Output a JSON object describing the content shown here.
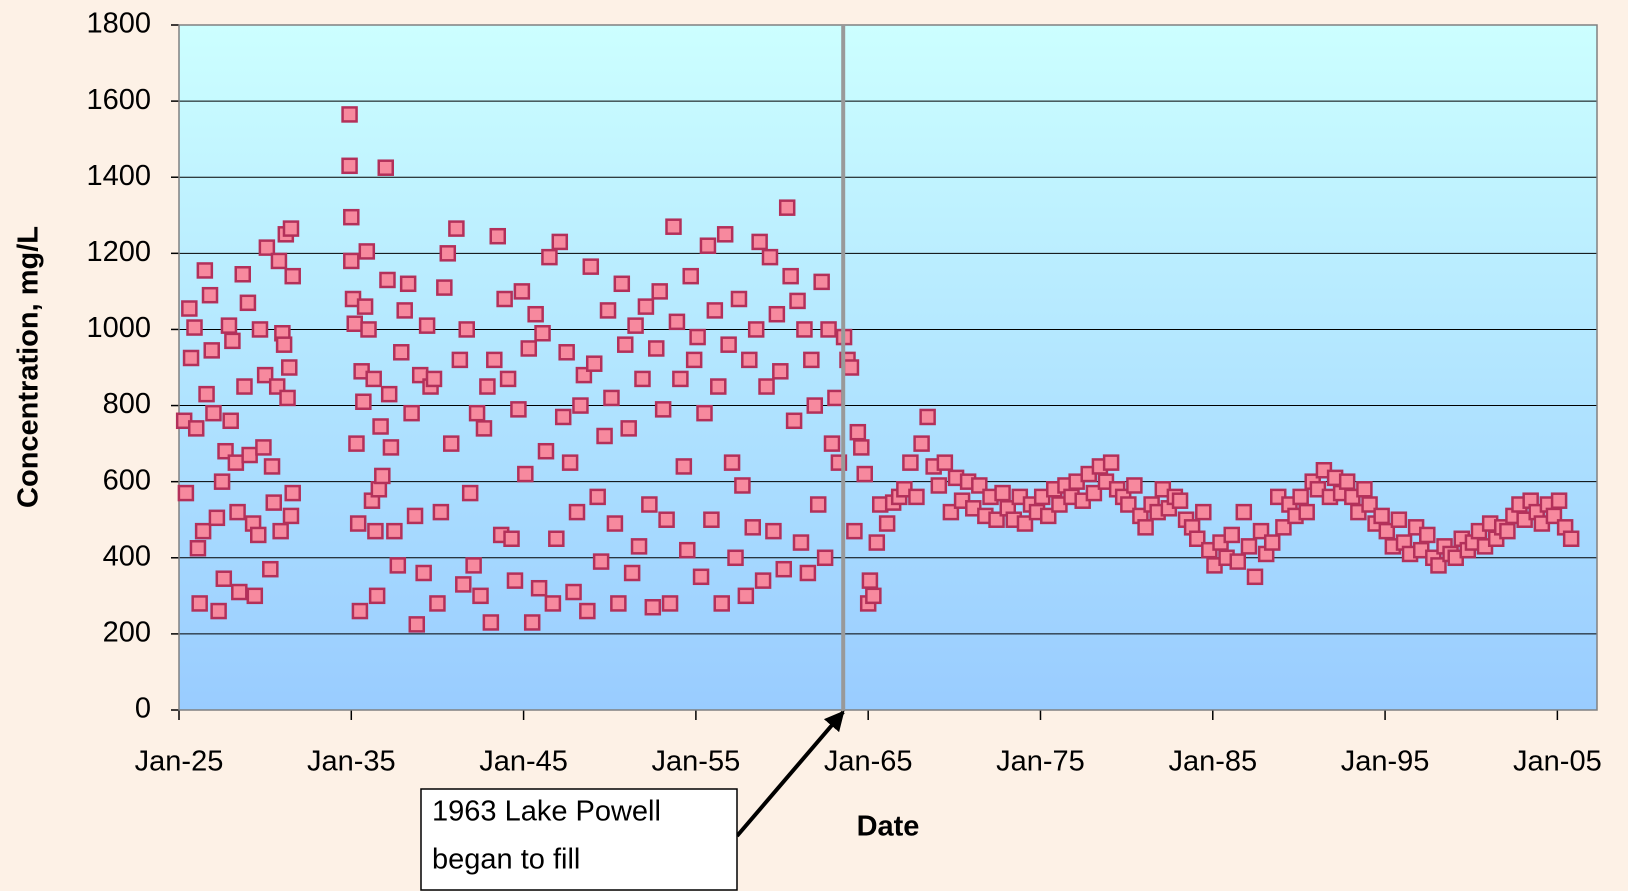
{
  "chart_data": {
    "type": "scatter",
    "xlabel": "Date",
    "ylabel": "Concentration, mg/L",
    "color": "#f7899e",
    "edgecolor": "#b3305a",
    "xlim": [
      1925,
      2007.3
    ],
    "ylim": [
      0,
      1800
    ],
    "xticks": [
      {
        "value": 1925,
        "label": "Jan-25"
      },
      {
        "value": 1935,
        "label": "Jan-35"
      },
      {
        "value": 1945,
        "label": "Jan-45"
      },
      {
        "value": 1955,
        "label": "Jan-55"
      },
      {
        "value": 1965,
        "label": "Jan-65"
      },
      {
        "value": 1975,
        "label": "Jan-75"
      },
      {
        "value": 1985,
        "label": "Jan-85"
      },
      {
        "value": 1995,
        "label": "Jan-95"
      },
      {
        "value": 2005,
        "label": "Jan-05"
      }
    ],
    "yticks": [
      0,
      200,
      400,
      600,
      800,
      1000,
      1200,
      1400,
      1600,
      1800
    ],
    "grid": true,
    "vline": 1963.55,
    "annotation": [
      "1963 Lake Powell",
      "began to fill"
    ],
    "x": [
      1925.3,
      1925.4,
      1925.6,
      1925.7,
      1925.9,
      1926.0,
      1926.1,
      1926.2,
      1926.4,
      1926.5,
      1926.6,
      1926.8,
      1926.9,
      1927.0,
      1927.2,
      1927.3,
      1927.5,
      1927.6,
      1927.7,
      1927.9,
      1928.0,
      1928.1,
      1928.3,
      1928.4,
      1928.5,
      1928.7,
      1928.8,
      1929.0,
      1929.1,
      1929.3,
      1929.4,
      1929.6,
      1929.7,
      1929.9,
      1930.0,
      1930.1,
      1930.3,
      1930.4,
      1930.5,
      1930.7,
      1930.8,
      1930.9,
      1931.0,
      1931.1,
      1931.2,
      1931.3,
      1931.4,
      1931.5,
      1931.5,
      1931.6,
      1931.6,
      1934.9,
      1934.9,
      1935.0,
      1935.0,
      1935.1,
      1935.2,
      1935.3,
      1935.4,
      1935.5,
      1935.6,
      1935.7,
      1935.8,
      1935.9,
      1936.0,
      1936.2,
      1936.3,
      1936.4,
      1936.5,
      1936.6,
      1936.7,
      1936.8,
      1937.0,
      1937.1,
      1937.2,
      1937.3,
      1937.5,
      1937.7,
      1937.9,
      1938.1,
      1938.3,
      1938.5,
      1938.7,
      1938.8,
      1939.0,
      1939.2,
      1939.4,
      1939.6,
      1939.8,
      1940.0,
      1940.2,
      1940.4,
      1940.6,
      1940.8,
      1941.1,
      1941.3,
      1941.5,
      1941.7,
      1941.9,
      1942.1,
      1942.3,
      1942.5,
      1942.7,
      1942.9,
      1943.1,
      1943.3,
      1943.5,
      1943.7,
      1943.9,
      1944.1,
      1944.3,
      1944.5,
      1944.7,
      1944.9,
      1945.1,
      1945.3,
      1945.5,
      1945.7,
      1945.9,
      1946.1,
      1946.3,
      1946.5,
      1946.7,
      1946.9,
      1947.1,
      1947.3,
      1947.5,
      1947.7,
      1947.9,
      1948.1,
      1948.3,
      1948.5,
      1948.7,
      1948.9,
      1949.1,
      1949.3,
      1949.5,
      1949.7,
      1949.9,
      1950.1,
      1950.3,
      1950.5,
      1950.7,
      1950.9,
      1951.1,
      1951.3,
      1951.5,
      1951.7,
      1951.9,
      1952.1,
      1952.3,
      1952.5,
      1952.7,
      1952.9,
      1953.1,
      1953.3,
      1953.5,
      1953.7,
      1953.9,
      1954.1,
      1954.3,
      1954.5,
      1954.7,
      1954.9,
      1955.1,
      1955.3,
      1955.5,
      1955.7,
      1955.9,
      1956.1,
      1956.3,
      1956.5,
      1956.7,
      1956.9,
      1957.1,
      1957.3,
      1957.5,
      1957.7,
      1957.9,
      1958.1,
      1958.3,
      1958.5,
      1958.7,
      1958.9,
      1959.1,
      1959.3,
      1959.5,
      1959.7,
      1959.9,
      1960.1,
      1960.3,
      1960.5,
      1960.7,
      1960.9,
      1961.1,
      1961.3,
      1961.5,
      1961.7,
      1961.9,
      1962.1,
      1962.3,
      1962.5,
      1962.7,
      1962.9,
      1963.1,
      1963.3,
      1963.6,
      1963.8,
      1964.0,
      1964.2,
      1964.4,
      1964.6,
      1964.8,
      1965.0,
      1965.1,
      1965.3,
      1965.5,
      1965.7,
      1966.1,
      1966.45,
      1966.8,
      1967.1,
      1967.45,
      1967.8,
      1968.1,
      1968.45,
      1968.8,
      1969.1,
      1969.45,
      1969.8,
      1970.1,
      1970.45,
      1970.8,
      1971.1,
      1971.45,
      1971.8,
      1972.1,
      1972.45,
      1972.8,
      1973.1,
      1973.45,
      1973.8,
      1974.1,
      1974.45,
      1974.8,
      1975.1,
      1975.45,
      1975.8,
      1976.1,
      1976.45,
      1976.8,
      1977.1,
      1977.45,
      1977.8,
      1978.1,
      1978.45,
      1978.8,
      1979.1,
      1979.45,
      1979.8,
      1980.1,
      1980.45,
      1980.8,
      1981.1,
      1981.45,
      1981.8,
      1982.1,
      1982.45,
      1982.8,
      1983.1,
      1983.45,
      1983.8,
      1984.1,
      1984.45,
      1984.8,
      1985.1,
      1985.45,
      1985.8,
      1986.1,
      1986.45,
      1986.8,
      1987.1,
      1987.45,
      1987.8,
      1988.1,
      1988.45,
      1988.8,
      1989.1,
      1989.45,
      1989.8,
      1990.1,
      1990.45,
      1990.8,
      1991.1,
      1991.45,
      1991.8,
      1992.1,
      1992.45,
      1992.8,
      1993.1,
      1993.45,
      1993.8,
      1994.1,
      1994.45,
      1994.8,
      1995.1,
      1995.45,
      1995.8,
      1996.1,
      1996.45,
      1996.8,
      1997.1,
      1997.45,
      1997.8,
      1998.1,
      1998.45,
      1998.8,
      1999.1,
      1999.45,
      1999.8,
      2000.1,
      2000.45,
      2000.8,
      2001.1,
      2001.45,
      2001.8,
      2002.1,
      2002.45,
      2002.8,
      2003.1,
      2003.45,
      2003.8,
      2004.1,
      2004.45,
      2004.8,
      2005.1,
      2005.45,
      2005.8
    ],
    "values": [
      760,
      570,
      1055,
      925,
      1005,
      740,
      425,
      280,
      470,
      1155,
      830,
      1090,
      945,
      780,
      505,
      260,
      600,
      345,
      680,
      1010,
      760,
      970,
      650,
      520,
      310,
      1145,
      850,
      1070,
      670,
      490,
      300,
      460,
      1000,
      690,
      880,
      1215,
      370,
      640,
      545,
      850,
      1180,
      470,
      990,
      960,
      1250,
      820,
      900,
      1265,
      510,
      570,
      1140,
      1565,
      1430,
      1295,
      1180,
      1080,
      1015,
      700,
      490,
      260,
      890,
      810,
      1060,
      1205,
      1000,
      550,
      870,
      470,
      300,
      580,
      745,
      615,
      1425,
      1130,
      830,
      690,
      470,
      380,
      940,
      1050,
      1120,
      780,
      510,
      225,
      880,
      360,
      1010,
      850,
      870,
      280,
      520,
      1110,
      1200,
      700,
      1265,
      920,
      330,
      1000,
      570,
      380,
      780,
      300,
      740,
      850,
      230,
      920,
      1245,
      460,
      1080,
      870,
      450,
      340,
      790,
      1100,
      620,
      950,
      230,
      1040,
      320,
      990,
      680,
      1190,
      280,
      450,
      1230,
      770,
      940,
      650,
      310,
      520,
      800,
      880,
      260,
      1165,
      910,
      560,
      390,
      720,
      1050,
      820,
      490,
      280,
      1120,
      960,
      740,
      360,
      1010,
      430,
      870,
      1060,
      540,
      270,
      950,
      1100,
      790,
      500,
      280,
      1270,
      1020,
      870,
      640,
      420,
      1140,
      920,
      980,
      350,
      780,
      1220,
      500,
      1050,
      850,
      280,
      1250,
      960,
      650,
      400,
      1080,
      590,
      300,
      920,
      480,
      1000,
      1230,
      340,
      850,
      1190,
      470,
      1040,
      890,
      370,
      1320,
      1140,
      760,
      1075,
      440,
      1000,
      360,
      920,
      800,
      540,
      1125,
      400,
      1000,
      700,
      820,
      650,
      980,
      920,
      900,
      470,
      730,
      690,
      620,
      280,
      340,
      300,
      440,
      540,
      490,
      545,
      560,
      580,
      650,
      560,
      700,
      770,
      640,
      590,
      650,
      520,
      610,
      550,
      600,
      530,
      590,
      510,
      560,
      500,
      570,
      530,
      500,
      560,
      490,
      540,
      520,
      560,
      510,
      580,
      540,
      590,
      560,
      600,
      550,
      620,
      570,
      640,
      600,
      650,
      580,
      560,
      540,
      590,
      510,
      480,
      540,
      520,
      580,
      530,
      560,
      550,
      500,
      480,
      450,
      520,
      420,
      380,
      440,
      400,
      460,
      390,
      520,
      430,
      350,
      470,
      410,
      440,
      560,
      480,
      540,
      510,
      560,
      520,
      600,
      580,
      630,
      560,
      610,
      570,
      600,
      560,
      520,
      580,
      540,
      490,
      510,
      470,
      430,
      500,
      440,
      410,
      480,
      420,
      460,
      400,
      380,
      430,
      410,
      400,
      450,
      420,
      440,
      470,
      430,
      490,
      450,
      480,
      470,
      510,
      540,
      500,
      550,
      520,
      490,
      540,
      510,
      550,
      480,
      450
    ]
  }
}
